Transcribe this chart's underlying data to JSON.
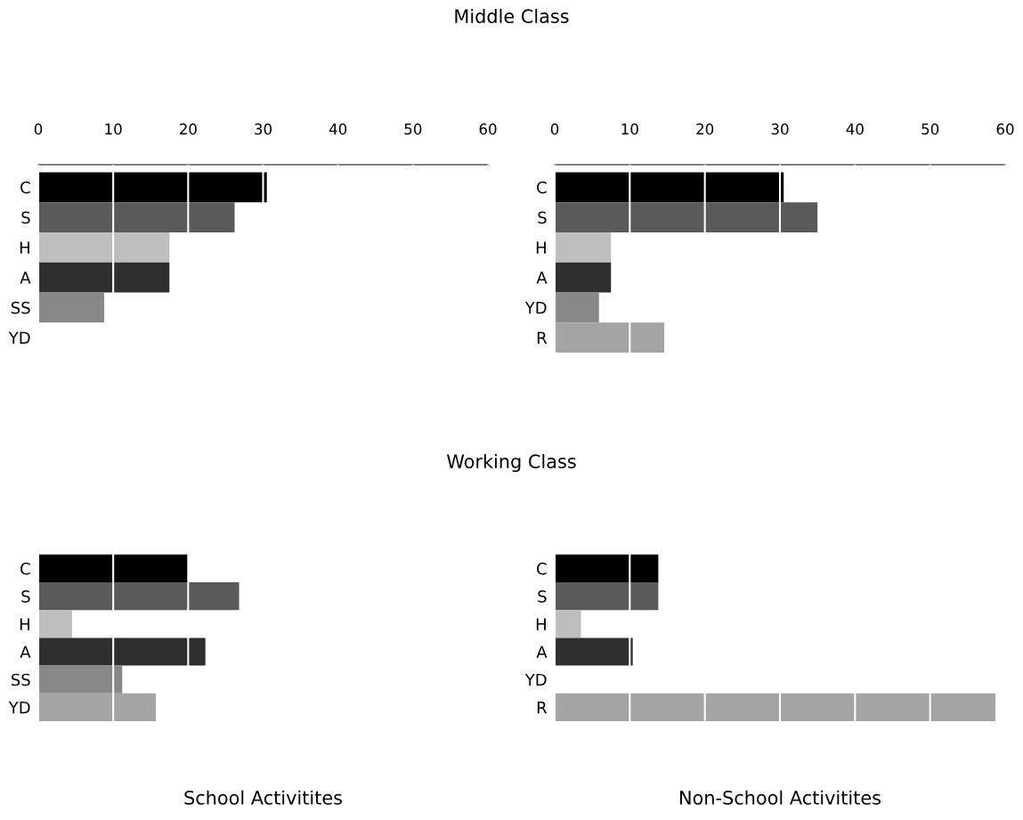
{
  "chart_data": [
    {
      "type": "bar",
      "orientation": "horizontal",
      "annotations": [
        "Middle Class"
      ],
      "categories": [
        "C",
        "S",
        "H",
        "A",
        "SS",
        "YD"
      ],
      "values": [
        30.5,
        26.2,
        17.5,
        17.5,
        8.8,
        0
      ],
      "colors": [
        "#000000",
        "#5a5a5a",
        "#bebebe",
        "#2f2f2f",
        "#888888",
        "#a4a4a4"
      ],
      "xlim": [
        0,
        60
      ],
      "xticks": [
        0,
        10,
        20,
        30,
        40,
        50,
        60
      ],
      "grid": "x"
    },
    {
      "type": "bar",
      "orientation": "horizontal",
      "categories": [
        "C",
        "S",
        "H",
        "A",
        "YD",
        "R"
      ],
      "values": [
        30.5,
        35,
        7.5,
        7.5,
        5.9,
        14.6
      ],
      "colors": [
        "#000000",
        "#5a5a5a",
        "#bebebe",
        "#2f2f2f",
        "#888888",
        "#a4a4a4"
      ],
      "xlim": [
        0,
        60
      ],
      "xticks": [
        0,
        10,
        20,
        30,
        40,
        50,
        60
      ],
      "grid": "x"
    },
    {
      "type": "bar",
      "orientation": "horizontal",
      "annotations": [
        "Working Class"
      ],
      "xlabel": "School Activitites",
      "categories": [
        "C",
        "S",
        "H",
        "A",
        "SS",
        "YD"
      ],
      "values": [
        20,
        26.8,
        4.5,
        22.3,
        11.2,
        15.7
      ],
      "colors": [
        "#000000",
        "#5a5a5a",
        "#bebebe",
        "#2f2f2f",
        "#888888",
        "#a4a4a4"
      ],
      "xlim": [
        0,
        60
      ],
      "xticks": [
        0,
        10,
        20,
        30,
        40,
        50,
        60
      ],
      "grid": "x",
      "tick_labels": "y"
    },
    {
      "type": "bar",
      "orientation": "horizontal",
      "xlabel": "Non-School Activitites",
      "categories": [
        "C",
        "S",
        "H",
        "A",
        "YD",
        "R"
      ],
      "values": [
        13.8,
        13.8,
        3.5,
        10.4,
        0,
        58.7
      ],
      "colors": [
        "#000000",
        "#5a5a5a",
        "#bebebe",
        "#2f2f2f",
        "#888888",
        "#a4a4a4"
      ],
      "xlim": [
        0,
        60
      ],
      "xticks": [
        0,
        10,
        20,
        30,
        40,
        50,
        60
      ],
      "grid": "x",
      "tick_labels": "y"
    }
  ]
}
